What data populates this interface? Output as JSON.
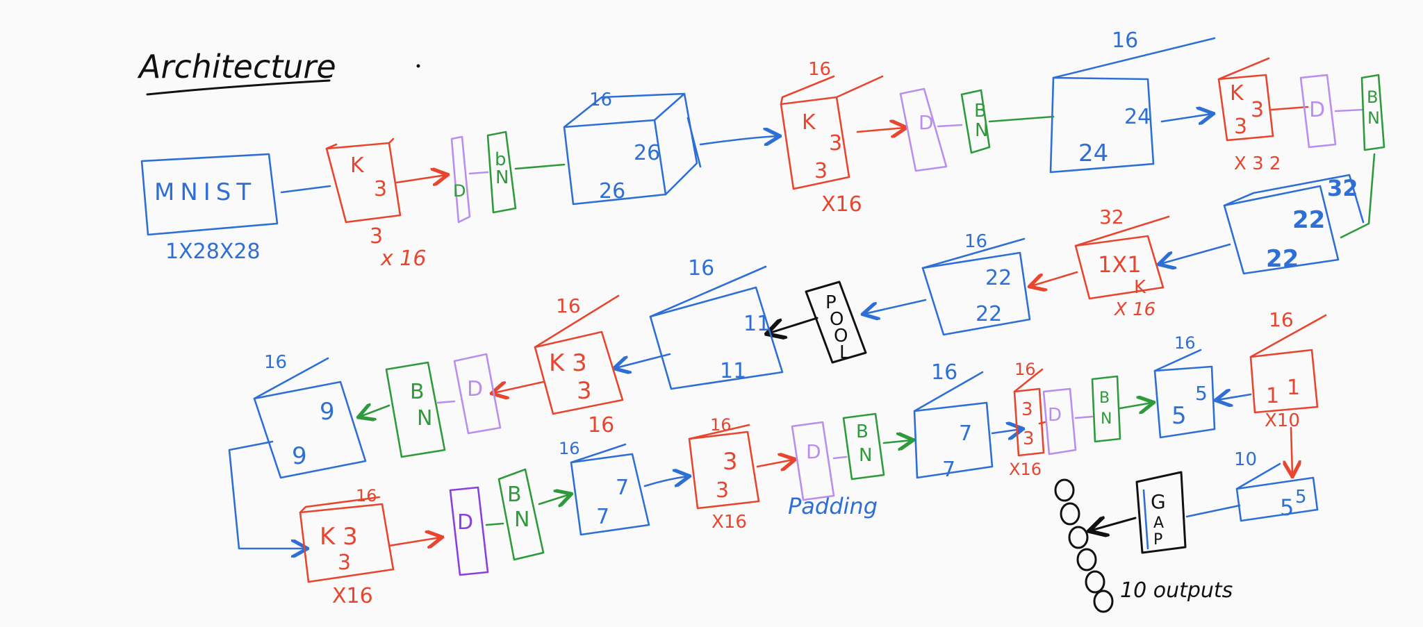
{
  "title": "Architecture",
  "input_block": {
    "label": "MNIST",
    "dims": "1X28X28"
  },
  "row1": {
    "k1": {
      "k": "K",
      "size": "3",
      "below1": "3",
      "below2": "x 16"
    },
    "d1": "D",
    "bn1": {
      "b": "b",
      "n": "N"
    },
    "cube1": {
      "top": "16",
      "h": "26",
      "w": "26"
    },
    "k2": {
      "top": "16",
      "k": "K",
      "a": "3",
      "b": "3",
      "below": "X16"
    },
    "d2": "D",
    "bn2": {
      "b": "B",
      "n": "N"
    },
    "cube2": {
      "top": "16",
      "h": "24",
      "w": "24"
    },
    "k3": {
      "k": "K",
      "a": "3",
      "b": "3",
      "below": "X 3 2"
    },
    "d3": "D",
    "bn3": {
      "b": "B",
      "n": "N"
    }
  },
  "row2": {
    "cube3": {
      "top": "32",
      "h": "22",
      "w": "22"
    },
    "k4": {
      "top": "32",
      "label": "1X1",
      "k": "K",
      "below": "X 16"
    },
    "cube4": {
      "top": "16",
      "h": "22",
      "w": "22"
    },
    "pool": [
      "P",
      "O",
      "O",
      "L"
    ],
    "cube5": {
      "top": "16",
      "h": "11",
      "w": "11"
    },
    "k5": {
      "top": "16",
      "k": "K 3",
      "b": "3",
      "below": "16"
    },
    "d5": "D",
    "bn5": {
      "b": "B",
      "n": "N"
    },
    "cube6": {
      "top": "16",
      "h": "9",
      "w": "9"
    }
  },
  "row3": {
    "k6": {
      "top": "16",
      "k": "K 3",
      "b": "3",
      "below": "X16"
    },
    "d6": "D",
    "bn6": {
      "b": "B",
      "n": "N"
    },
    "cube7": {
      "top": "16",
      "h": "7",
      "w": "7"
    },
    "k7": {
      "top": "16",
      "a": "3",
      "b": "3",
      "below": "X16"
    },
    "padding_note": "Padding",
    "d7": "D",
    "bn7": {
      "b": "B",
      "n": "N"
    },
    "cube8": {
      "top": "16",
      "h": "7",
      "w": "7"
    },
    "k8": {
      "top": "16",
      "a": "3",
      "b": "3",
      "below": "X16"
    },
    "d8": "D",
    "bn8": {
      "b": "B",
      "n": "N"
    },
    "cube9": {
      "top": "16",
      "h": "5",
      "w": "5"
    },
    "k9": {
      "top": "16",
      "a": "1",
      "b": "1",
      "below": "X10"
    },
    "cube10": {
      "top": "10",
      "h": "5",
      "w": "5"
    },
    "gap": [
      "G",
      "A",
      "P"
    ],
    "outputs": "10 outputs"
  }
}
